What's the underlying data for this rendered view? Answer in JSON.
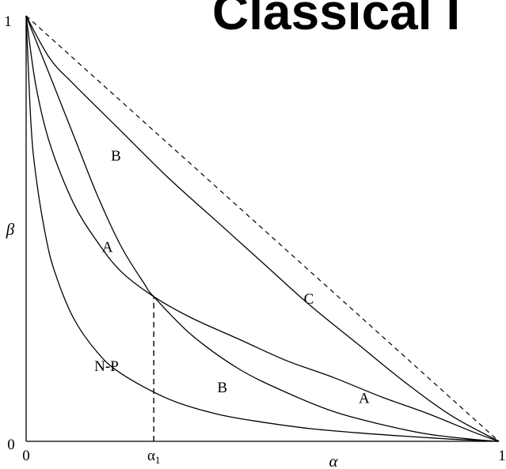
{
  "slide_title": "Classical I",
  "chart_data": {
    "type": "line",
    "title": "",
    "xlabel": "α",
    "ylabel": "β",
    "xlim": [
      0,
      1
    ],
    "ylim": [
      0,
      1
    ],
    "x_ticks": [
      "0",
      "α1",
      "1"
    ],
    "y_ticks": [
      "0",
      "1"
    ],
    "grid": false,
    "series": [
      {
        "name": "C",
        "style": "solid",
        "x": [
          0,
          0.05,
          0.1,
          0.2,
          0.3,
          0.4,
          0.5,
          0.6,
          0.7,
          0.8,
          0.9,
          1
        ],
        "y": [
          1,
          0.9,
          0.84,
          0.73,
          0.62,
          0.52,
          0.42,
          0.32,
          0.23,
          0.14,
          0.06,
          0
        ]
      },
      {
        "name": "B",
        "style": "solid",
        "x": [
          0,
          0.05,
          0.1,
          0.15,
          0.2,
          0.25,
          0.27,
          0.35,
          0.45,
          0.55,
          0.65,
          0.75,
          0.85,
          0.95,
          1
        ],
        "y": [
          1,
          0.86,
          0.72,
          0.58,
          0.46,
          0.37,
          0.34,
          0.25,
          0.17,
          0.115,
          0.07,
          0.04,
          0.017,
          0.004,
          0
        ]
      },
      {
        "name": "A",
        "style": "solid",
        "x": [
          0,
          0.02,
          0.05,
          0.1,
          0.15,
          0.2,
          0.27,
          0.35,
          0.45,
          0.55,
          0.65,
          0.75,
          0.85,
          0.95,
          1
        ],
        "y": [
          1,
          0.84,
          0.7,
          0.56,
          0.47,
          0.4,
          0.34,
          0.29,
          0.24,
          0.19,
          0.15,
          0.105,
          0.065,
          0.02,
          0
        ]
      },
      {
        "name": "N-P",
        "style": "solid",
        "x": [
          0,
          0.01,
          0.02,
          0.04,
          0.06,
          0.1,
          0.15,
          0.2,
          0.3,
          0.4,
          0.5,
          0.6,
          0.7,
          0.8,
          0.9,
          1
        ],
        "y": [
          1,
          0.75,
          0.63,
          0.49,
          0.4,
          0.29,
          0.21,
          0.16,
          0.1,
          0.065,
          0.045,
          0.03,
          0.02,
          0.012,
          0.005,
          0
        ]
      }
    ],
    "reference_line": {
      "style": "dashed",
      "x": [
        0,
        1
      ],
      "y": [
        1,
        0
      ]
    },
    "marker_line": {
      "style": "dashed",
      "x": 0.27,
      "y": [
        0,
        0.34
      ]
    },
    "annotations": [
      {
        "text": "B",
        "x": 0.19,
        "y": 0.66
      },
      {
        "text": "A",
        "x": 0.172,
        "y": 0.445
      },
      {
        "text": "C",
        "x": 0.598,
        "y": 0.323
      },
      {
        "text": "N-P",
        "x": 0.17,
        "y": 0.165
      },
      {
        "text": "B",
        "x": 0.415,
        "y": 0.115
      },
      {
        "text": "A",
        "x": 0.715,
        "y": 0.09
      }
    ]
  }
}
